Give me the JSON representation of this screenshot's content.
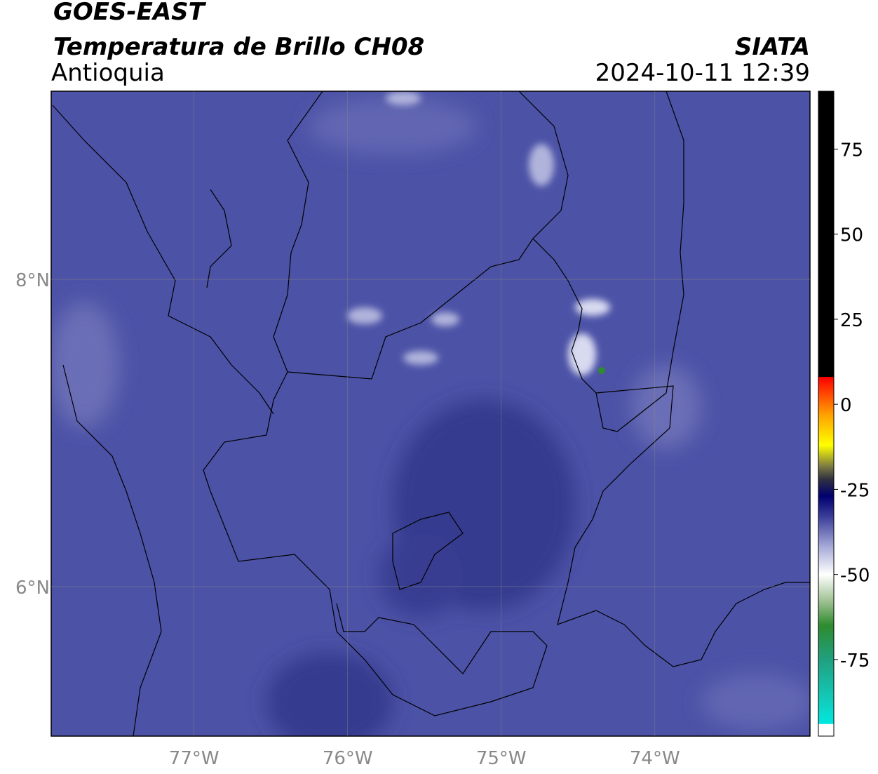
{
  "title": "GOES-EAST",
  "subtitle": "Temperatura de Brillo CH08",
  "region": "Antioquia",
  "source": "SIATA",
  "datetime": "2024-10-11 12:39",
  "map": {
    "lonlim": [
      -77.93,
      -72.99
    ],
    "latlim": [
      5.027,
      9.224
    ],
    "lonticks": [
      {
        "value": -77,
        "label": "77°W"
      },
      {
        "value": -76,
        "label": "76°W"
      },
      {
        "value": -75,
        "label": "75°W"
      },
      {
        "value": -74,
        "label": "74°W"
      }
    ],
    "latticks": [
      {
        "value": 8,
        "label": "8°N"
      },
      {
        "value": 6,
        "label": "6°N"
      }
    ],
    "grid": true
  },
  "colorbar": {
    "lim": [
      -97.5,
      92
    ],
    "ticks": [
      75,
      50,
      25,
      0,
      -25,
      -50,
      -75
    ],
    "stops": [
      {
        "value": -97.5,
        "color": "#ffffff"
      },
      {
        "value": -94,
        "color": "#ffffff"
      },
      {
        "value": -93.9,
        "color": "#00e8e0"
      },
      {
        "value": -88,
        "color": "#10d0c0"
      },
      {
        "value": -75,
        "color": "#20a080"
      },
      {
        "value": -65,
        "color": "#2e8b2e"
      },
      {
        "value": -58,
        "color": "#9cc090"
      },
      {
        "value": -50,
        "color": "#ffffff"
      },
      {
        "value": -42,
        "color": "#a8acd8"
      },
      {
        "value": -33,
        "color": "#3a3e98"
      },
      {
        "value": -27,
        "color": "#000070"
      },
      {
        "value": -22,
        "color": "#303040"
      },
      {
        "value": -18,
        "color": "#807f40"
      },
      {
        "value": -12,
        "color": "#ffff00"
      },
      {
        "value": -3,
        "color": "#ffa000"
      },
      {
        "value": 8,
        "color": "#ff0000"
      },
      {
        "value": 8.1,
        "color": "#000000"
      },
      {
        "value": 92,
        "color": "#000000"
      }
    ]
  }
}
